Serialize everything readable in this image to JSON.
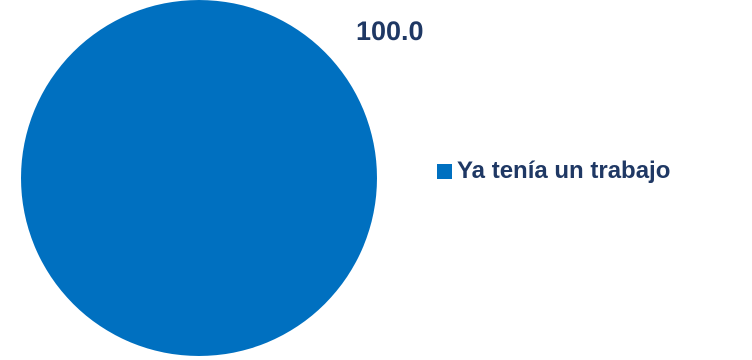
{
  "chart_data": {
    "type": "pie",
    "categories": [
      "Ya tenía un trabajo"
    ],
    "values": [
      100.0
    ],
    "data_labels": [
      "100.0"
    ],
    "legend": {
      "position": "right",
      "entries": [
        "Ya tenía un trabajo"
      ]
    }
  },
  "colors": {
    "slice": "#0070C0",
    "label_text": "#1F3864",
    "legend_text": "#1F3864",
    "background": "#FFFFFF"
  }
}
